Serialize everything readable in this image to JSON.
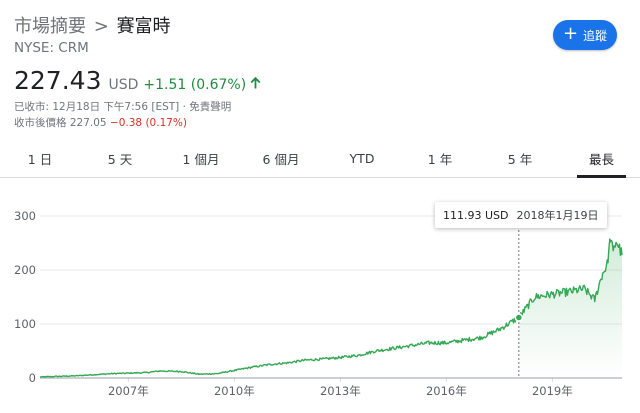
{
  "header": {
    "breadcrumb_root": "市場摘要",
    "breadcrumb_sep": ">",
    "company": "賽富時",
    "ticker": "NYSE: CRM",
    "follow_label": "追蹤"
  },
  "quote": {
    "price": "227.43",
    "currency": "USD",
    "change": "+1.51 (0.67%)",
    "close_info": "已收市: 12月18日 下午7:56 [EST] · 免責聲明",
    "after_hours_label": "收市後價格",
    "after_hours_price": "227.05",
    "after_hours_change": "−0.38 (0.17%)"
  },
  "tabs": [
    "1 日",
    "5 天",
    "1 個月",
    "6 個月",
    "YTD",
    "1 年",
    "5 年",
    "最長"
  ],
  "active_tab": "最長",
  "tooltip": {
    "value": "111.93 USD",
    "date": "2018年1月19日"
  },
  "colors": {
    "positive": "#1e8e3e",
    "negative": "#d93025",
    "accent": "#1a73e8",
    "line": "#34a853"
  },
  "icons": {
    "follow": "plus-icon",
    "trend": "up-arrow-icon"
  },
  "chart_data": {
    "type": "area",
    "x_tick_labels": [
      "2007年",
      "2010年",
      "2013年",
      "2016年",
      "2019年"
    ],
    "y_ticks": [
      0,
      100,
      200,
      300
    ],
    "ylim": [
      0,
      300
    ],
    "x_range": [
      2004.5,
      2020.97
    ],
    "x": [
      2004.5,
      2005.0,
      2005.5,
      2006.0,
      2006.5,
      2007.0,
      2007.5,
      2007.9,
      2008.5,
      2009.0,
      2009.5,
      2010.0,
      2010.5,
      2011.0,
      2011.5,
      2012.0,
      2012.5,
      2013.0,
      2013.5,
      2014.0,
      2014.5,
      2015.0,
      2015.5,
      2016.0,
      2016.5,
      2017.0,
      2017.5,
      2018.05,
      2018.5,
      2019.0,
      2019.5,
      2019.9,
      2020.2,
      2020.4,
      2020.55,
      2020.65,
      2020.72,
      2020.8,
      2020.9,
      2020.97
    ],
    "values": [
      2,
      3,
      4,
      6,
      8,
      9,
      10,
      13,
      12,
      7,
      8,
      14,
      20,
      25,
      28,
      33,
      35,
      38,
      42,
      50,
      55,
      60,
      65,
      65,
      70,
      75,
      90,
      111.93,
      150,
      155,
      160,
      165,
      145,
      190,
      210,
      262,
      230,
      255,
      240,
      227.43
    ],
    "highlight": {
      "x": 2018.05,
      "value": 111.93,
      "date": "2018年1月19日"
    }
  }
}
